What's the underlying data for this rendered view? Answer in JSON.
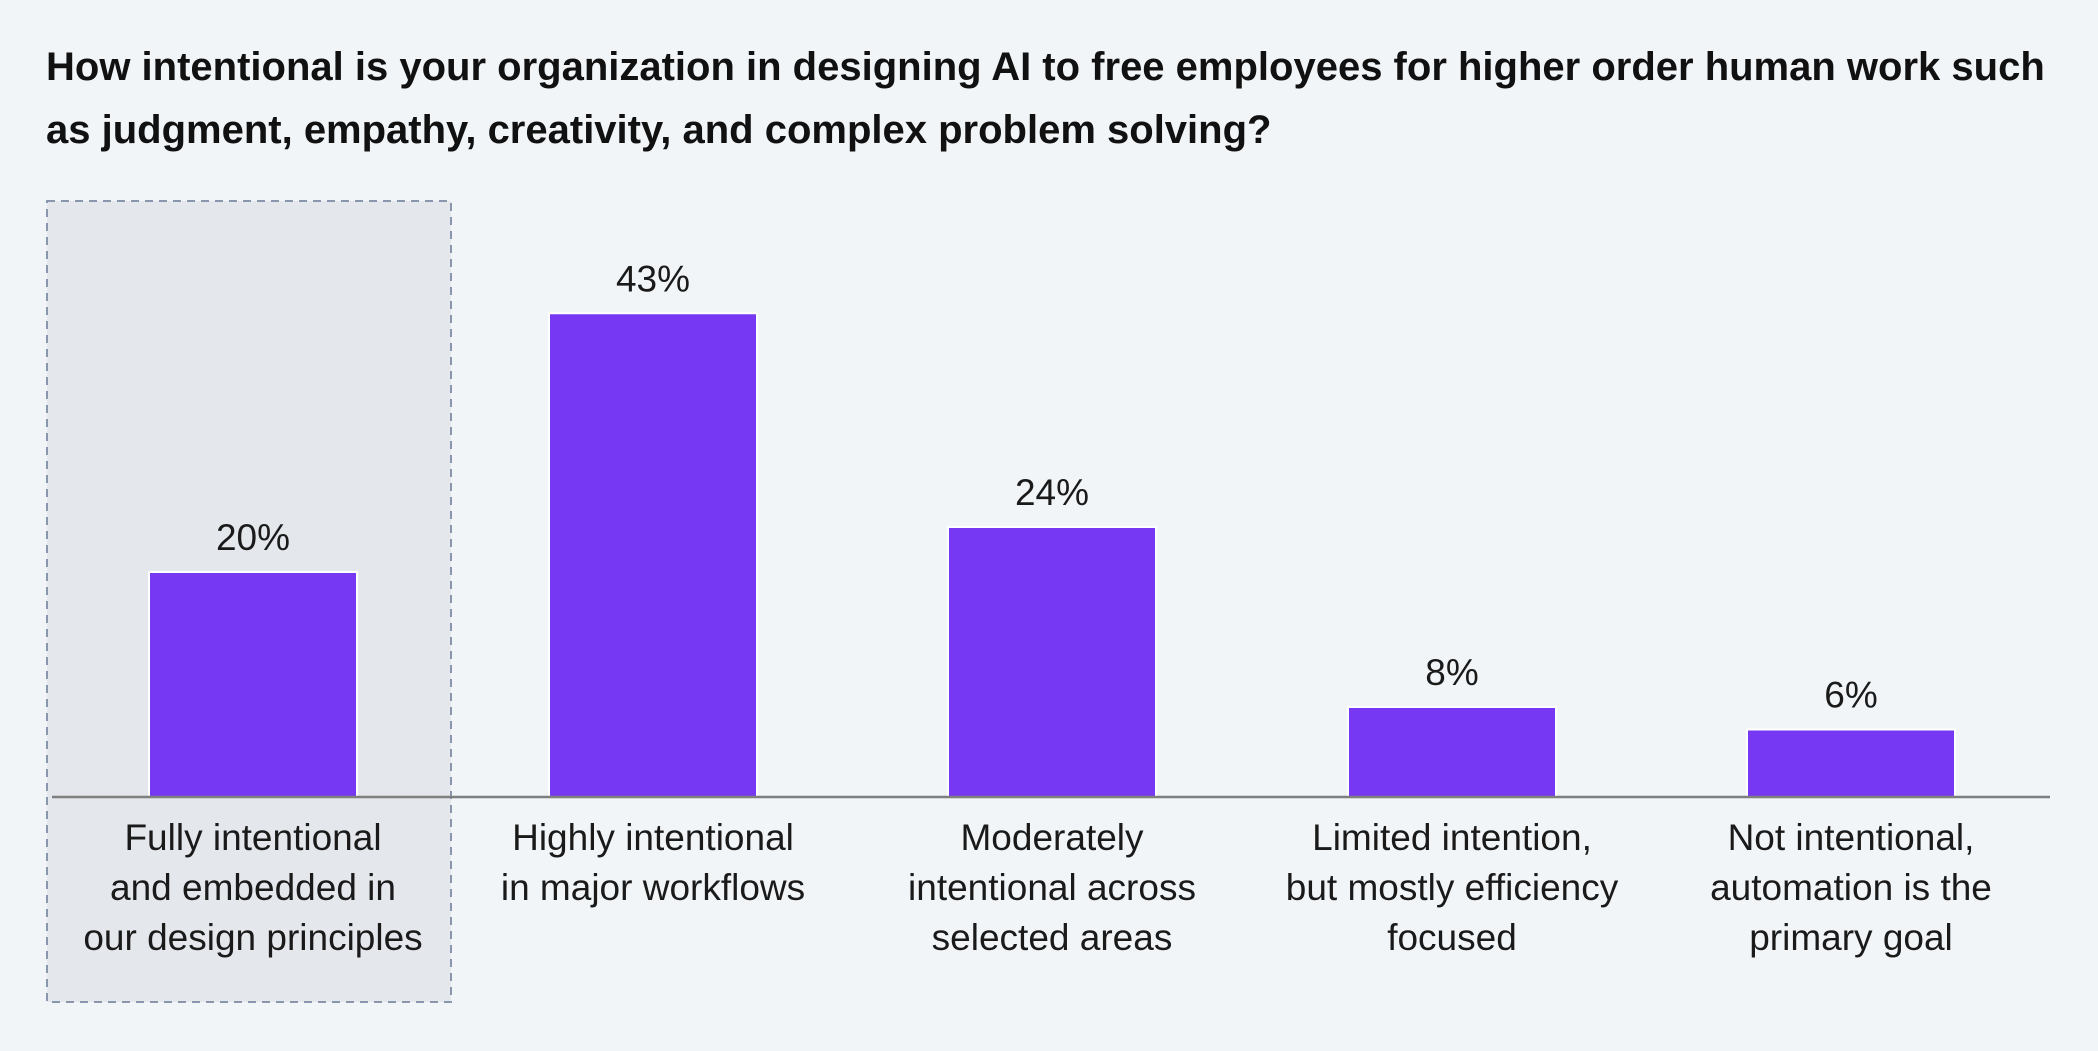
{
  "title": "How intentional is your organization in designing AI to free employees for higher order human work such as judgment, empathy, creativity, and complex problem solving?",
  "colors": {
    "bar": "#7638f2",
    "highlight_fill": "#e4e7ec",
    "highlight_border": "#8a96ad",
    "axis": "#7f7f7f",
    "background": "#f1f5f8"
  },
  "chart_data": {
    "type": "bar",
    "categories": [
      [
        "Fully intentional",
        "and embedded in",
        "our design principles"
      ],
      [
        "Highly intentional",
        "in major workflows"
      ],
      [
        "Moderately",
        "intentional across",
        "selected areas"
      ],
      [
        "Limited intention,",
        "but mostly efficiency",
        "focused"
      ],
      [
        "Not intentional,",
        "automation is the",
        "primary goal"
      ]
    ],
    "values": [
      20,
      43,
      24,
      8,
      6
    ],
    "value_labels": [
      "20%",
      "43%",
      "24%",
      "8%",
      "6%"
    ],
    "highlighted_category_index": 0,
    "ylim": [
      0,
      50
    ],
    "grid": false
  }
}
